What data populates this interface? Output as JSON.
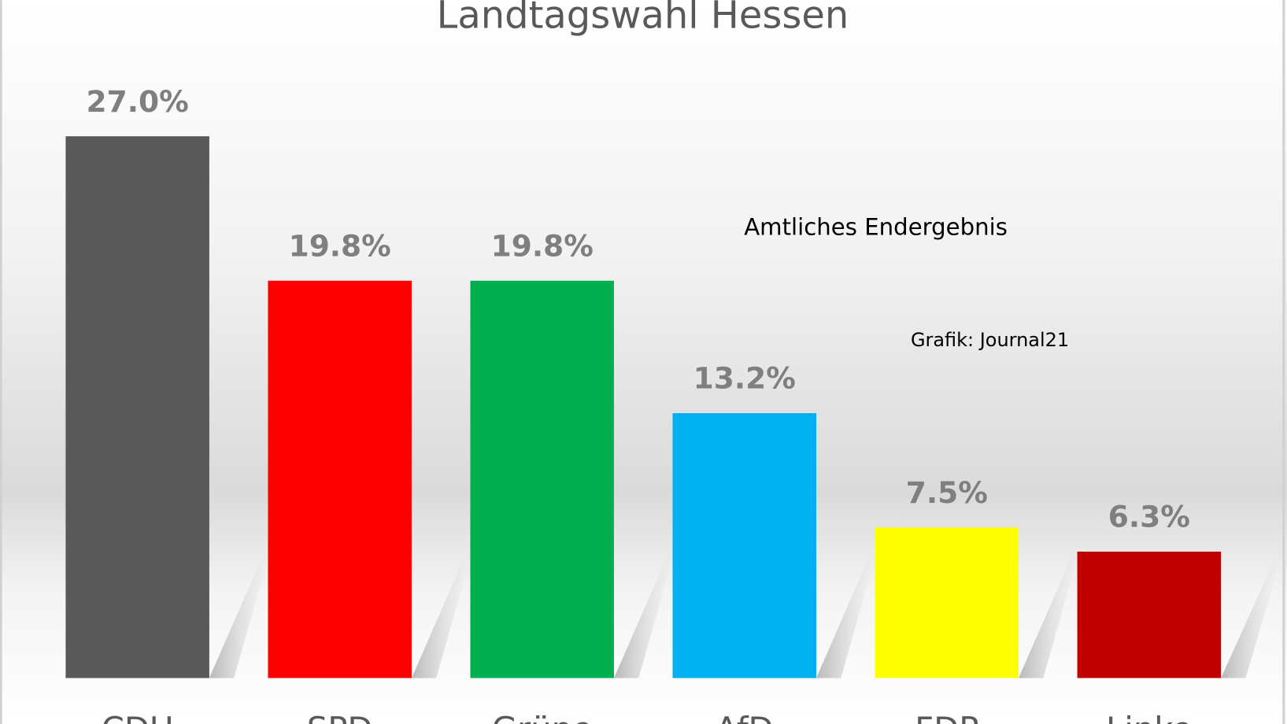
{
  "chart_data": {
    "type": "bar",
    "title": "Landtagswahl Hessen",
    "annotations": [
      "Amtliches Endergebnis",
      "Grafik: Journal21"
    ],
    "categories": [
      "CDU",
      "SPD",
      "Grüne",
      "AfD",
      "FDP",
      "Linke"
    ],
    "values": [
      27.0,
      19.8,
      19.8,
      13.2,
      7.5,
      6.3
    ],
    "data_labels": [
      "27.0%",
      "19.8%",
      "19.8%",
      "13.2%",
      "7.5%",
      "6.3%"
    ],
    "colors": [
      "#595959",
      "#ff0000",
      "#00b050",
      "#00b0f0",
      "#ffff00",
      "#c00000"
    ],
    "unit": "%",
    "ylim": [
      0,
      27.5
    ],
    "grid": false,
    "legend": "none"
  }
}
